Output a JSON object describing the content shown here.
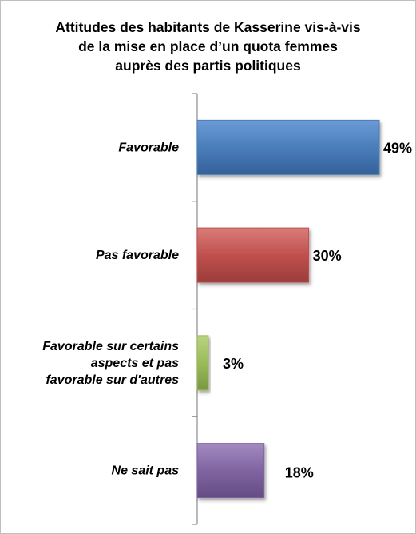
{
  "chart_data": {
    "type": "bar",
    "orientation": "horizontal",
    "title_lines": [
      "Attitudes des habitants de Kasserine vis-à-vis",
      "de la mise en place d’un quota femmes",
      "auprès des partis politiques"
    ],
    "categories": [
      [
        "Favorable"
      ],
      [
        "Pas favorable"
      ],
      [
        "Favorable sur certains",
        "aspects et pas",
        "favorable sur d'autres"
      ],
      [
        "Ne sait pas"
      ]
    ],
    "values": [
      49,
      30,
      3,
      18
    ],
    "value_labels": [
      "49%",
      "30%",
      "3%",
      "18%"
    ],
    "colors": [
      "#4a7ebb",
      "#c0504d",
      "#9bbb59",
      "#8064a2"
    ],
    "xlim": [
      0,
      49
    ],
    "grid": false,
    "legend": "none"
  }
}
